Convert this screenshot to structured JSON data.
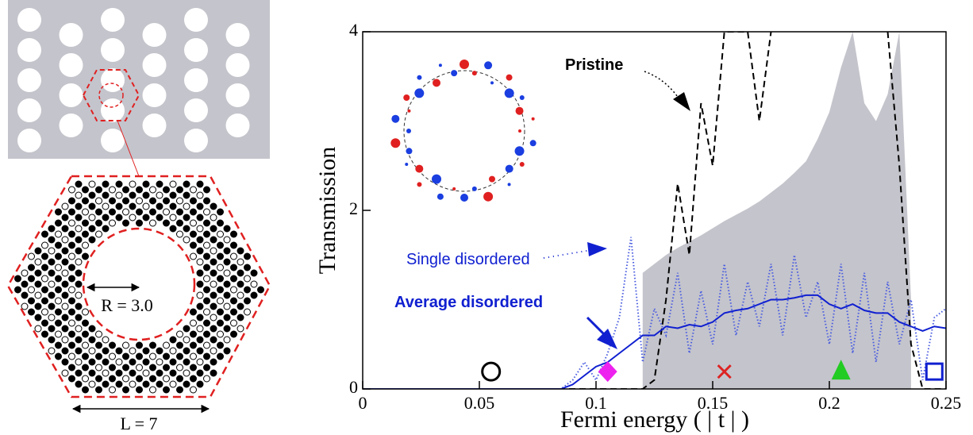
{
  "schematic": {
    "radius_label": "R = 3.0",
    "length_label": "L = 7"
  },
  "chart_data": {
    "type": "line",
    "x_label": "Fermi energy ( | t | )",
    "y_label": "Transmission",
    "xlim": [
      0,
      0.25
    ],
    "ylim": [
      0,
      4
    ],
    "xticks": [
      0,
      0.05,
      0.1,
      0.15,
      0.2,
      0.25
    ],
    "yticks": [
      0,
      2,
      4
    ],
    "x": [
      0,
      0.005,
      0.01,
      0.015,
      0.02,
      0.025,
      0.03,
      0.035,
      0.04,
      0.045,
      0.05,
      0.055,
      0.06,
      0.065,
      0.07,
      0.075,
      0.08,
      0.085,
      0.09,
      0.095,
      0.1,
      0.105,
      0.11,
      0.115,
      0.12,
      0.125,
      0.13,
      0.135,
      0.14,
      0.145,
      0.15,
      0.155,
      0.16,
      0.165,
      0.17,
      0.175,
      0.18,
      0.185,
      0.19,
      0.195,
      0.2,
      0.205,
      0.21,
      0.215,
      0.22,
      0.225,
      0.23,
      0.235,
      0.24,
      0.245,
      0.25
    ],
    "series": [
      {
        "style": "area",
        "color": "#c4c4cc",
        "values": [
          null,
          null,
          null,
          null,
          null,
          null,
          null,
          null,
          null,
          null,
          null,
          null,
          null,
          null,
          null,
          null,
          null,
          null,
          null,
          null,
          null,
          null,
          null,
          null,
          1.3,
          1.4,
          1.5,
          1.58,
          1.65,
          1.72,
          1.8,
          1.88,
          1.95,
          2.02,
          2.1,
          2.2,
          2.3,
          2.42,
          2.55,
          2.8,
          3.1,
          3.6,
          4.0,
          3.2,
          3.0,
          3.3,
          4.0,
          1.0,
          null,
          null,
          null
        ]
      },
      {
        "name": "Pristine",
        "style": "dashed",
        "color": "#000000",
        "values": [
          0,
          0,
          0,
          0,
          0,
          0,
          0,
          0,
          0,
          0,
          0,
          0,
          0,
          0,
          0,
          0,
          0,
          0,
          0,
          0,
          0,
          0,
          0,
          0,
          0,
          0.1,
          1.0,
          2.3,
          1.5,
          3.2,
          2.5,
          4.0,
          4.0,
          4.0,
          3.0,
          4.0,
          null,
          null,
          null,
          null,
          null,
          null,
          null,
          null,
          null,
          4.0,
          2.5,
          0.5,
          0,
          0,
          0
        ]
      },
      {
        "name": "Single disordered",
        "style": "dotted",
        "color": "#4a5de0",
        "values": [
          0,
          0,
          0,
          0,
          0,
          0,
          0,
          0,
          0,
          0,
          0,
          0,
          0,
          0,
          0,
          0,
          0,
          0,
          0.1,
          0.3,
          0.1,
          0.4,
          0.8,
          1.7,
          0.3,
          0.9,
          0.6,
          1.3,
          0.4,
          1.1,
          0.5,
          1.4,
          0.6,
          1.2,
          0.7,
          1.4,
          0.6,
          1.5,
          0.8,
          1.2,
          0.5,
          1.4,
          0.4,
          1.3,
          0.3,
          1.2,
          0.5,
          1.0,
          0.1,
          0.8,
          0.9
        ]
      },
      {
        "name": "Average disordered",
        "style": "solid",
        "color": "#1020d0",
        "values": [
          0,
          0,
          0,
          0,
          0,
          0,
          0,
          0,
          0,
          0,
          0,
          0,
          0,
          0,
          0,
          0,
          0,
          0,
          0.05,
          0.15,
          0.25,
          0.3,
          0.4,
          0.5,
          0.6,
          0.6,
          0.7,
          0.68,
          0.72,
          0.7,
          0.75,
          0.85,
          0.88,
          0.9,
          0.95,
          1.0,
          1.0,
          1.02,
          1.05,
          1.05,
          0.95,
          0.9,
          0.95,
          0.88,
          0.85,
          0.85,
          0.75,
          0.7,
          0.65,
          0.7,
          0.68
        ]
      }
    ],
    "markers": [
      {
        "x": 0.055,
        "y": 0.15,
        "shape": "circle",
        "color": "#000000"
      },
      {
        "x": 0.105,
        "y": 0.15,
        "shape": "diamond",
        "color": "#ee22ee"
      },
      {
        "x": 0.155,
        "y": 0.15,
        "shape": "cross",
        "color": "#dd2222"
      },
      {
        "x": 0.205,
        "y": 0.15,
        "shape": "triangle",
        "color": "#22cc22"
      },
      {
        "x": 0.245,
        "y": 0.15,
        "shape": "square",
        "color": "#1020d0"
      }
    ]
  }
}
